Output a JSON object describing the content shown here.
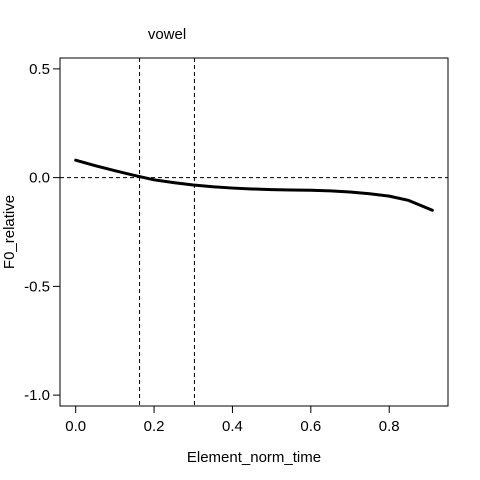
{
  "chart_data": {
    "type": "line",
    "title": "",
    "xlabel": "Element_norm_time",
    "ylabel": "F0_relative",
    "xlim": [
      -0.04,
      0.95
    ],
    "ylim": [
      -1.05,
      0.55
    ],
    "x_ticks": [
      0.0,
      0.2,
      0.4,
      0.6,
      0.8
    ],
    "x_tick_labels": [
      "0.0",
      "0.2",
      "0.4",
      "0.6",
      "0.8"
    ],
    "y_ticks": [
      -1.0,
      -0.5,
      0.0,
      0.5
    ],
    "y_tick_labels": [
      "-1.0",
      "-0.5",
      "0.0",
      "0.5"
    ],
    "grid": false,
    "reference_lines": {
      "horizontal": [
        0.0
      ],
      "vertical": [
        0.163,
        0.303
      ]
    },
    "annotations": [
      {
        "text": "vowel",
        "x": 0.233,
        "y": 0.66
      }
    ],
    "series": [
      {
        "color": "#000000",
        "x": [
          0.0,
          0.05,
          0.1,
          0.15,
          0.2,
          0.25,
          0.3,
          0.35,
          0.4,
          0.45,
          0.5,
          0.55,
          0.6,
          0.65,
          0.7,
          0.75,
          0.8,
          0.85,
          0.91
        ],
        "y": [
          0.08,
          0.055,
          0.032,
          0.01,
          -0.01,
          -0.023,
          -0.034,
          -0.042,
          -0.048,
          -0.052,
          -0.055,
          -0.057,
          -0.058,
          -0.061,
          -0.066,
          -0.074,
          -0.085,
          -0.105,
          -0.15
        ]
      }
    ]
  }
}
